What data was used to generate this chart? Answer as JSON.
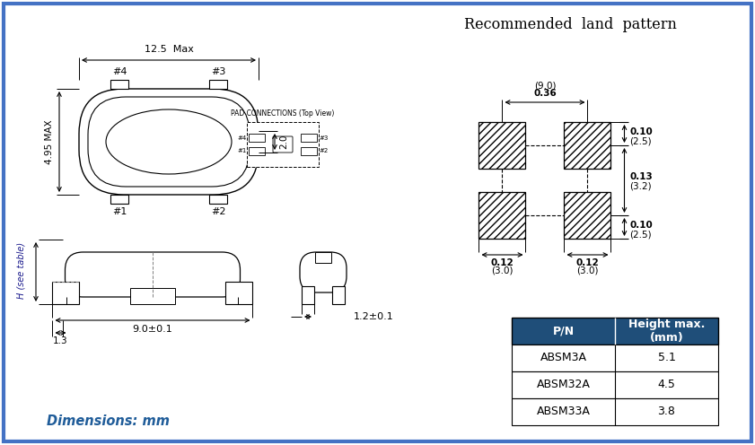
{
  "bg_color": "#ffffff",
  "border_color": "#4472c4",
  "border_width": 3,
  "title_text": "Recommended  land  pattern",
  "dimensions_text": "Dimensions: mm",
  "dimensions_color": "#1f5c99",
  "table_header_bg": "#1f4e79",
  "table_header_color": "#ffffff",
  "table_rows": [
    [
      "ABSM3A",
      "5.1"
    ],
    [
      "ABSM32A",
      "4.5"
    ],
    [
      "ABSM33A",
      "3.8"
    ]
  ],
  "table_col_headers": [
    "P/N",
    "Height max.\n(mm)"
  ]
}
